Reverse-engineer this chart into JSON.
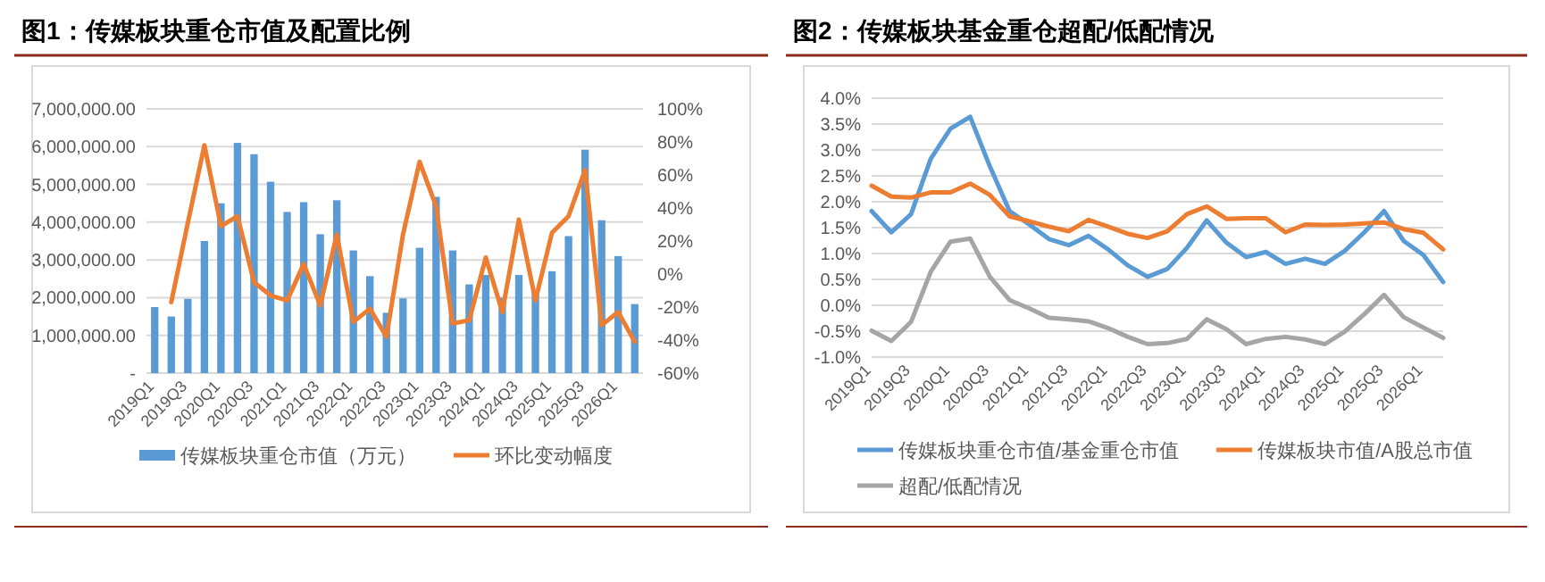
{
  "chart_data": [
    {
      "type": "bar",
      "title": "图1：传媒板块重仓市值及配置比例",
      "categories": [
        "2019Q1",
        null,
        "2019Q3",
        null,
        "2020Q1",
        null,
        "2020Q3",
        null,
        "2021Q1",
        null,
        "2021Q3",
        null,
        "2022Q1",
        null,
        "2022Q3",
        null,
        "2023Q1",
        null,
        "2023Q3",
        null,
        "2024Q1",
        null,
        "2024Q3",
        null,
        "2025Q1",
        null,
        "2025Q3",
        null,
        "2026Q1",
        null
      ],
      "series": [
        {
          "name": "传媒板块重仓市值（万元）",
          "type": "bar",
          "color": "#5b9bd5",
          "values": [
            1750000,
            1500000,
            1970000,
            3500000,
            4500000,
            6100000,
            5800000,
            5070000,
            4270000,
            4530000,
            3680000,
            4580000,
            3250000,
            2570000,
            1600000,
            1980000,
            3320000,
            4670000,
            3250000,
            2350000,
            2600000,
            2000000,
            2600000,
            2200000,
            2700000,
            3630000,
            5920000,
            4050000,
            3100000,
            1830000
          ]
        },
        {
          "name": "环比变动幅度",
          "type": "line",
          "axis": "y2",
          "color": "#ed7d31",
          "values": [
            null,
            -17,
            31,
            78,
            29,
            35,
            -5,
            -13,
            -16,
            6,
            -19,
            24,
            -29,
            -21,
            -38,
            24,
            68,
            41,
            -30,
            -28,
            10,
            -23,
            33,
            -16,
            25,
            35,
            63,
            -31,
            -23,
            -41
          ]
        }
      ],
      "ylim": [
        0,
        7000000
      ],
      "yticks": [
        {
          "value": 0,
          "label": "-"
        },
        {
          "value": 1000000,
          "label": "1,000,000.00"
        },
        {
          "value": 2000000,
          "label": "2,000,000.00"
        },
        {
          "value": 3000000,
          "label": "3,000,000.00"
        },
        {
          "value": 4000000,
          "label": "4,000,000.00"
        },
        {
          "value": 5000000,
          "label": "5,000,000.00"
        },
        {
          "value": 6000000,
          "label": "6,000,000.00"
        },
        {
          "value": 7000000,
          "label": "7,000,000.00"
        }
      ],
      "y2lim": [
        -60,
        100
      ],
      "y2ticks": [
        {
          "value": -60,
          "label": "-60%"
        },
        {
          "value": -40,
          "label": "-40%"
        },
        {
          "value": -20,
          "label": "-20%"
        },
        {
          "value": 0,
          "label": "0%"
        },
        {
          "value": 20,
          "label": "20%"
        },
        {
          "value": 40,
          "label": "40%"
        },
        {
          "value": 60,
          "label": "60%"
        },
        {
          "value": 80,
          "label": "80%"
        },
        {
          "value": 100,
          "label": "100%"
        }
      ],
      "grid": "y",
      "legend": "bottom"
    },
    {
      "type": "line",
      "title": "图2：传媒板块基金重仓超配/低配情况",
      "categories": [
        "2019Q1",
        null,
        "2019Q3",
        null,
        "2020Q1",
        null,
        "2020Q3",
        null,
        "2021Q1",
        null,
        "2021Q3",
        null,
        "2022Q1",
        null,
        "2022Q3",
        null,
        "2023Q1",
        null,
        "2023Q3",
        null,
        "2024Q1",
        null,
        "2024Q3",
        null,
        "2025Q1",
        null,
        "2025Q3",
        null,
        "2026Q1",
        null
      ],
      "series": [
        {
          "name": "传媒板块重仓市值/基金重仓市值",
          "color": "#5b9bd5",
          "values": [
            1.82,
            1.41,
            1.76,
            2.83,
            3.41,
            3.64,
            2.68,
            1.82,
            1.56,
            1.28,
            1.16,
            1.34,
            1.08,
            0.77,
            0.55,
            0.7,
            1.11,
            1.64,
            1.21,
            0.93,
            1.03,
            0.8,
            0.9,
            0.8,
            1.05,
            1.41,
            1.82,
            1.24,
            0.97,
            0.45
          ]
        },
        {
          "name": "传媒板块市值/A股总市值",
          "color": "#ed7d31",
          "values": [
            2.31,
            2.1,
            2.08,
            2.18,
            2.18,
            2.35,
            2.13,
            1.72,
            1.62,
            1.52,
            1.43,
            1.65,
            1.52,
            1.38,
            1.3,
            1.43,
            1.76,
            1.91,
            1.67,
            1.68,
            1.68,
            1.41,
            1.56,
            1.55,
            1.56,
            1.58,
            1.6,
            1.47,
            1.4,
            1.08
          ]
        },
        {
          "name": "超配/低配情况",
          "color": "#a5a5a5",
          "values": [
            -0.49,
            -0.69,
            -0.32,
            0.65,
            1.23,
            1.29,
            0.55,
            0.1,
            -0.06,
            -0.24,
            -0.27,
            -0.31,
            -0.44,
            -0.61,
            -0.75,
            -0.73,
            -0.65,
            -0.27,
            -0.46,
            -0.75,
            -0.65,
            -0.61,
            -0.66,
            -0.75,
            -0.51,
            -0.17,
            0.2,
            -0.23,
            -0.43,
            -0.63
          ]
        }
      ],
      "ylim": [
        -1,
        4
      ],
      "yticks": [
        {
          "value": -1,
          "label": "-1.0%"
        },
        {
          "value": -0.5,
          "label": "-0.5%"
        },
        {
          "value": 0,
          "label": "0.0%"
        },
        {
          "value": 0.5,
          "label": "0.5%"
        },
        {
          "value": 1,
          "label": "1.0%"
        },
        {
          "value": 1.5,
          "label": "1.5%"
        },
        {
          "value": 2,
          "label": "2.0%"
        },
        {
          "value": 2.5,
          "label": "2.5%"
        },
        {
          "value": 3,
          "label": "3.0%"
        },
        {
          "value": 3.5,
          "label": "3.5%"
        },
        {
          "value": 4,
          "label": "4.0%"
        }
      ],
      "grid": "y",
      "legend": "bottom"
    }
  ]
}
